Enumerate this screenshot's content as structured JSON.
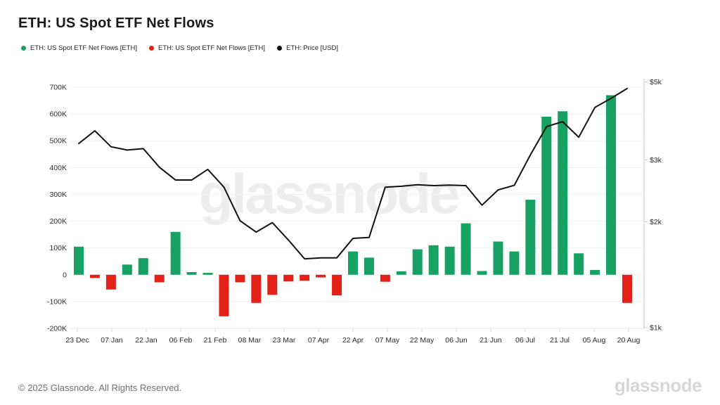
{
  "header": {
    "title": "ETH: US Spot ETF Net Flows"
  },
  "legend": [
    {
      "label": "ETH: US Spot ETF Net Flows [ETH]",
      "color": "#17a163"
    },
    {
      "label": "ETH: US Spot ETF Net Flows [ETH]",
      "color": "#e32119"
    },
    {
      "label": "ETH: Price [USD]",
      "color": "#111111"
    }
  ],
  "watermark": "glassnode",
  "footer": {
    "copyright": "© 2025 Glassnode. All Rights Reserved.",
    "brand": "glassnode"
  },
  "chart_data": {
    "type": "bar+line",
    "title": "ETH: US Spot ETF Net Flows",
    "x_tick_labels": [
      "23 Dec",
      "07 Jan",
      "22 Jan",
      "06 Feb",
      "21 Feb",
      "08 Mar",
      "23 Mar",
      "07 Apr",
      "22 Apr",
      "07 May",
      "22 May",
      "06 Jun",
      "21 Jun",
      "06 Jul",
      "21 Jul",
      "05 Aug",
      "20 Aug"
    ],
    "series": [
      {
        "name": "ETH: US Spot ETF Net Flows [ETH]",
        "type": "bar",
        "axis": "left",
        "positive_color": "#17a163",
        "negative_color": "#e32119",
        "values": [
          105000,
          -12000,
          -55000,
          38000,
          62000,
          -28000,
          160000,
          10000,
          7000,
          -155000,
          -28000,
          -105000,
          -75000,
          -25000,
          -22000,
          -10000,
          -77000,
          87000,
          64000,
          -26000,
          13000,
          95000,
          110000,
          105000,
          192000,
          14000,
          124000,
          87000,
          280000,
          590000,
          610000,
          80000,
          18000,
          670000,
          -105000
        ]
      },
      {
        "name": "ETH: Price [USD]",
        "type": "line",
        "axis": "right",
        "color": "#111111",
        "values": [
          3340,
          3630,
          3270,
          3200,
          3230,
          2860,
          2630,
          2630,
          2820,
          2510,
          2015,
          1870,
          1990,
          1775,
          1570,
          1580,
          1580,
          1795,
          1805,
          2510,
          2525,
          2550,
          2535,
          2545,
          2535,
          2230,
          2465,
          2540,
          3100,
          3730,
          3855,
          3480,
          4230,
          4490,
          4790
        ]
      }
    ],
    "left_axis": {
      "ticks": [
        "700K",
        "600K",
        "500K",
        "400K",
        "300K",
        "200K",
        "100K",
        "0",
        "-100K",
        "-200K"
      ],
      "tick_values": [
        700000,
        600000,
        500000,
        400000,
        300000,
        200000,
        100000,
        0,
        -100000,
        -200000
      ],
      "min": -200000,
      "max": 700000,
      "scale": "linear"
    },
    "right_axis": {
      "ticks": [
        "$5k",
        "$3k",
        "$2k",
        "$1k"
      ],
      "tick_values": [
        5000,
        3000,
        2000,
        1000
      ],
      "min": 1000,
      "max": 5000,
      "scale": "log"
    },
    "grid": true,
    "legend_position": "top-left"
  }
}
